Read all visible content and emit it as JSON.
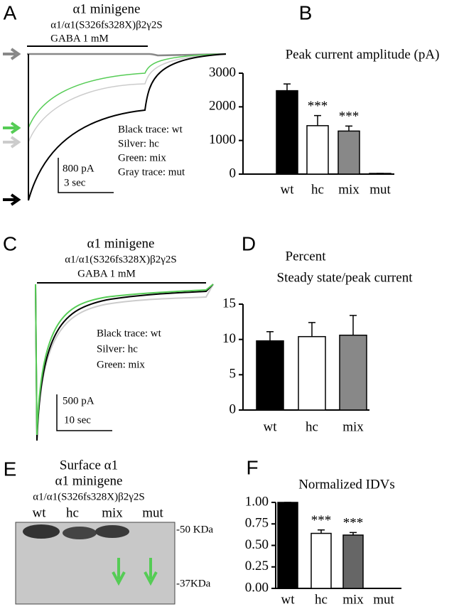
{
  "chart_data": [
    {
      "type": "bar",
      "label": "B",
      "title": "Peak current amplitude (pA)",
      "categories": [
        "wt",
        "hc",
        "mix",
        "mut"
      ],
      "values": [
        2480,
        1440,
        1280,
        20
      ],
      "errors": [
        200,
        300,
        150,
        0
      ],
      "colors": [
        "#000000",
        "#ffffff",
        "#888888",
        "#ffffff"
      ],
      "ylim": [
        0,
        3000
      ],
      "yticks": [
        0,
        1000,
        2000,
        3000
      ],
      "value_annotations": [
        null,
        "***",
        "***",
        null
      ]
    },
    {
      "type": "bar",
      "label": "D",
      "title": [
        "Percent",
        "Steady state/peak current"
      ],
      "categories": [
        "wt",
        "hc",
        "mix"
      ],
      "values": [
        9.8,
        10.4,
        10.6
      ],
      "errors": [
        1.3,
        2.0,
        2.8
      ],
      "colors": [
        "#000000",
        "#ffffff",
        "#888888"
      ],
      "ylim": [
        0,
        15
      ],
      "yticks": [
        0,
        5,
        10,
        15
      ]
    },
    {
      "type": "bar",
      "label": "F",
      "title": "Normalized IDVs",
      "categories": [
        "wt",
        "hc",
        "mix",
        "mut"
      ],
      "values": [
        1.0,
        0.64,
        0.62,
        0
      ],
      "errors": [
        0,
        0.04,
        0.03,
        0
      ],
      "colors": [
        "#000000",
        "#ffffff",
        "#666666",
        "#ffffff"
      ],
      "ylim": [
        0,
        1
      ],
      "yticks": [
        {
          "value": 0,
          "label": "0.00"
        },
        0.25,
        {
          "value": 0.5,
          "label": "0.50"
        },
        0.75,
        {
          "value": 1,
          "label": "1.00"
        }
      ],
      "value_annotations": [
        null,
        "***",
        "***",
        null
      ]
    }
  ],
  "panels": {
    "a": {
      "label": "A",
      "title": "α1 minigene",
      "subtitle": "α1/α1(S326fs328X)β2γ2S",
      "stimulus": "GABA 1 mM",
      "legend": [
        "Black trace: wt",
        "Silver: hc",
        "Green: mix",
        "Gray trace: mut"
      ],
      "scale": [
        "800 pA",
        "3 sec"
      ]
    },
    "c": {
      "label": "C",
      "title": "α1 minigene",
      "subtitle": "α1/α1(S326fs328X)β2γ2S",
      "stimulus": "GABA 1 mM",
      "legend": [
        "Black trace: wt",
        "Silver: hc",
        "Green: mix"
      ],
      "scale": [
        "500 pA",
        "10 sec"
      ]
    },
    "e": {
      "label": "E",
      "title": [
        "Surface α1",
        "α1 minigene"
      ],
      "subtitle": "α1/α1(S326fs328X)β2γ2S",
      "lanes": [
        "wt",
        "hc",
        "mix",
        "mut"
      ],
      "markers": [
        "-50 KDa",
        "-37KDa"
      ]
    }
  }
}
